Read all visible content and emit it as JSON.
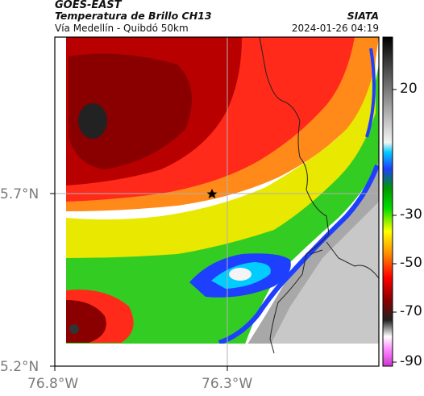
{
  "header": {
    "satellite": "GOES-EAST",
    "product": "Temperatura de Brillo CH13",
    "region": "Vía Medellín - Quibdó 50km",
    "agency": "SIATA",
    "timestamp": "2024-01-26 04:19"
  },
  "axes": {
    "lat_labels": [
      "5.7°N",
      "5.2°N"
    ],
    "lon_labels": [
      "76.8°W",
      "76.3°W"
    ]
  },
  "colorbar": {
    "ticks": [
      "20",
      "-30",
      "-50",
      "-70",
      "-90"
    ]
  },
  "marker": {
    "icon": "star-icon"
  },
  "colors": {
    "frame": "#000000",
    "grid": "#b0b0b0",
    "border": "#222222"
  }
}
